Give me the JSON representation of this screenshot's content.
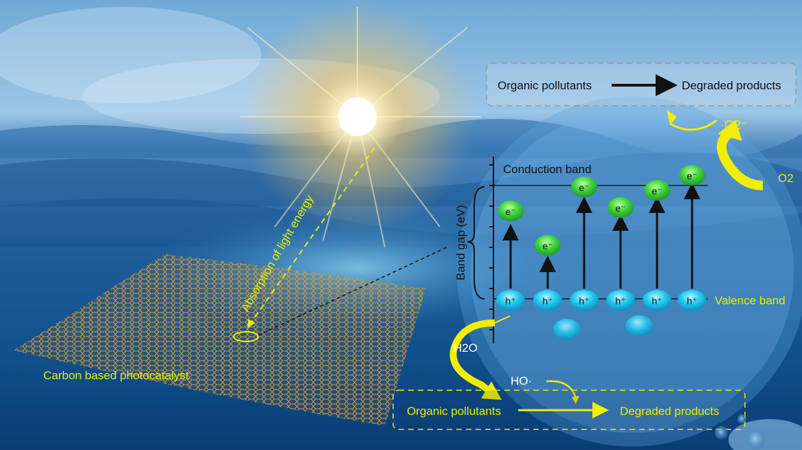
{
  "top_box": {
    "left_text": "Organic pollutants",
    "right_text": "Degraded products"
  },
  "bottom_box": {
    "left_text": "Organic pollutants",
    "right_text": "Degraded products"
  },
  "labels": {
    "conduction_band": "Conduction band",
    "valence_band": "Valence band",
    "band_gap": "Band gap (eV)",
    "light_absorption": "Absorption of light energy",
    "catalyst": "Carbon based photocatalyst",
    "superoxide": "·O2⁻",
    "oxygen": "O2",
    "water": "H2O",
    "hydroxyl": "HO·"
  },
  "carriers": {
    "electron": "e⁻",
    "hole": "h⁺",
    "electron_count": 6,
    "hole_count": 6
  },
  "colors": {
    "label_yellow": "#e8f000",
    "arrow_yellow": "#f2ee00",
    "electron_green": "#3ed13a",
    "hole_cyan": "#1fc8ee",
    "band_line": "#1a1a1a"
  }
}
